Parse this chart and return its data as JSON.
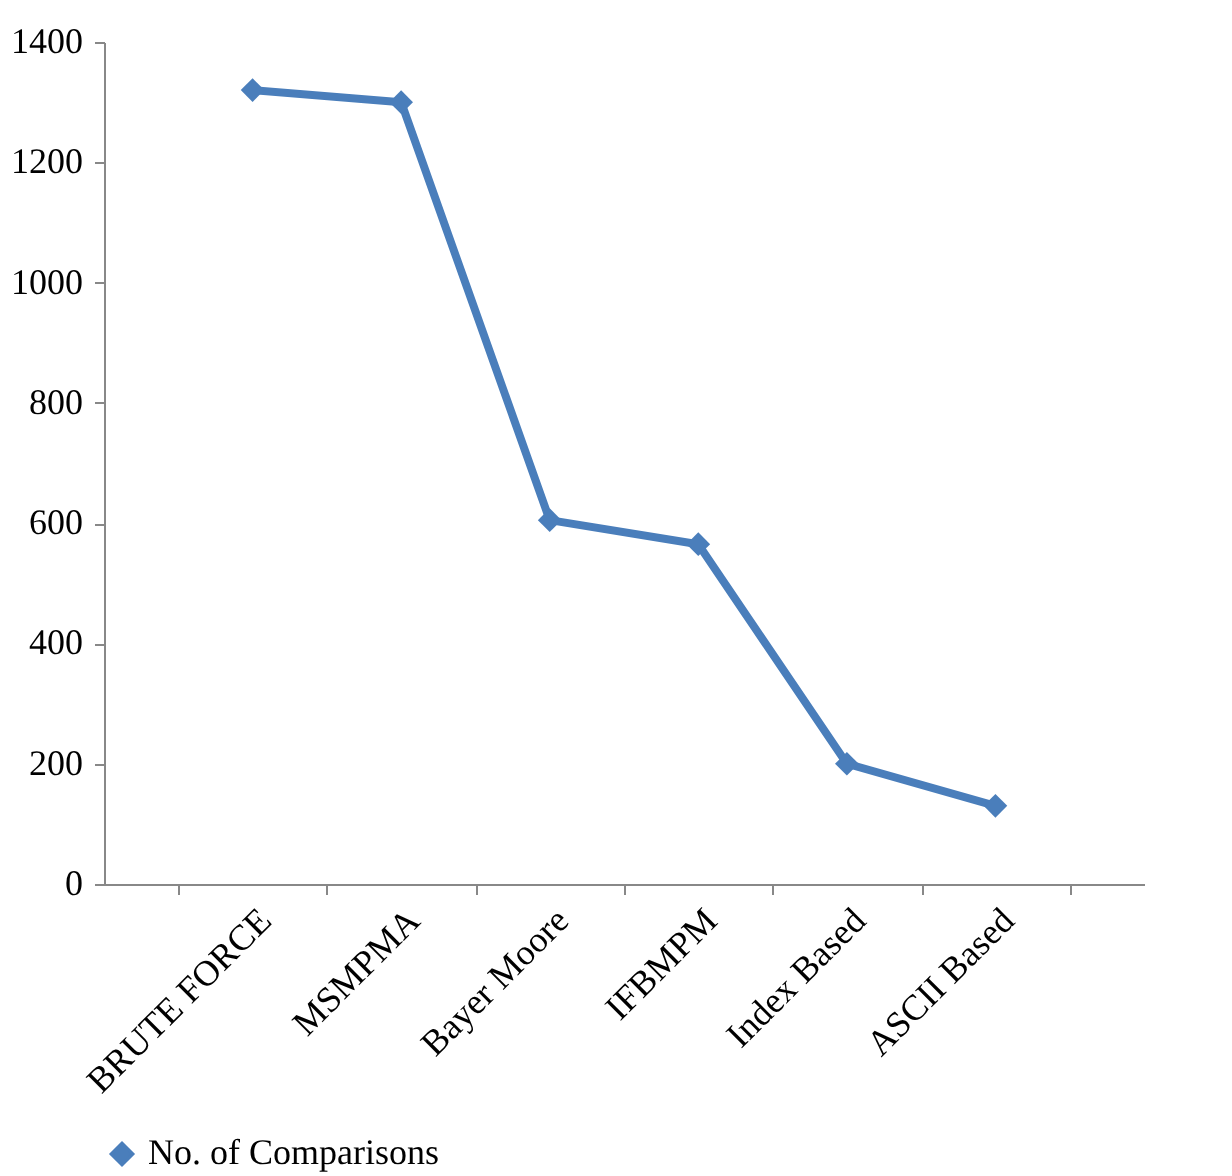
{
  "chart_data": {
    "type": "line",
    "categories": [
      "BRUTE FORCE",
      "MSMPMA",
      "Bayer Moore",
      "IFBMPM",
      "Index Based",
      "ASCII Based"
    ],
    "series": [
      {
        "name": "No. of Comparisons",
        "color": "#4a7ebb",
        "values": [
          1320,
          1300,
          605,
          565,
          200,
          130
        ]
      }
    ],
    "ylim": [
      0,
      1400
    ],
    "yticks": [
      0,
      200,
      400,
      600,
      800,
      1000,
      1200,
      1400
    ],
    "grid": false,
    "legend": "bottom",
    "marker": "diamond",
    "line_style": "solid"
  }
}
